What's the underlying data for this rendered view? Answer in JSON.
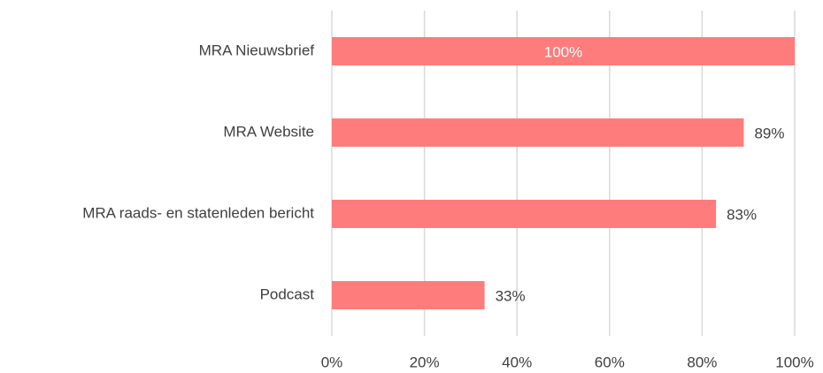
{
  "chart_data": {
    "type": "hbar",
    "categories": [
      "MRA Nieuwsbrief",
      "MRA Website",
      "MRA raads- en statenleden bericht",
      "Podcast"
    ],
    "values": [
      100,
      89,
      83,
      33
    ],
    "value_labels": [
      "100%",
      "89%",
      "83%",
      "33%"
    ],
    "color": "#ff7c7c",
    "xlim": [
      0,
      100
    ],
    "xticks": [
      {
        "value": 0,
        "label": "0%"
      },
      {
        "value": 20,
        "label": "20%"
      },
      {
        "value": 40,
        "label": "40%"
      },
      {
        "value": 60,
        "label": "60%"
      },
      {
        "value": 80,
        "label": "80%"
      },
      {
        "value": 100,
        "label": "100%"
      }
    ],
    "grid": true
  }
}
